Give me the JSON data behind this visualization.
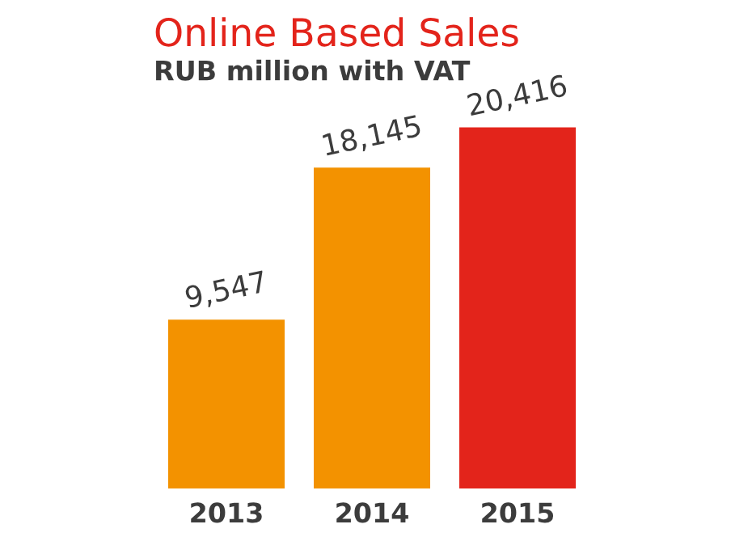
{
  "chart_data": {
    "type": "bar",
    "title": "Online Based Sales",
    "subtitle": "RUB million with VAT",
    "categories": [
      "2013",
      "2014",
      "2015"
    ],
    "values": [
      9547,
      18145,
      20416
    ],
    "colors": [
      "#f39200",
      "#f39200",
      "#e3241b"
    ],
    "value_labels": [
      "9,547",
      "18,145",
      "20,416"
    ],
    "grid": false,
    "legend": false
  }
}
